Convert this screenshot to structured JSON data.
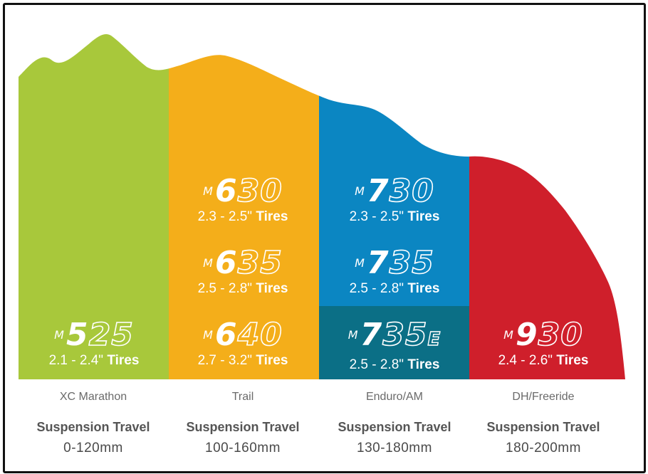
{
  "colors": {
    "xc": "#a8c83b",
    "trail": "#f4ae1a",
    "enduro": "#0b86c2",
    "enduro_e": "#0b6f86",
    "dh": "#cf1f2b"
  },
  "columns": [
    {
      "category": "XC Marathon",
      "travel_label": "Suspension Travel",
      "travel_range": "0-120mm",
      "products": [
        {
          "prefix": "M",
          "lead": "5",
          "rest": "25",
          "suffix": "",
          "size": "2.1 - 2.4\"",
          "tires": "Tires"
        }
      ]
    },
    {
      "category": "Trail",
      "travel_label": "Suspension Travel",
      "travel_range": "100-160mm",
      "products": [
        {
          "prefix": "M",
          "lead": "6",
          "rest": "30",
          "suffix": "",
          "size": "2.3 - 2.5\"",
          "tires": "Tires"
        },
        {
          "prefix": "M",
          "lead": "6",
          "rest": "35",
          "suffix": "",
          "size": "2.5 - 2.8\"",
          "tires": "Tires"
        },
        {
          "prefix": "M",
          "lead": "6",
          "rest": "40",
          "suffix": "",
          "size": "2.7 - 3.2\"",
          "tires": "Tires"
        }
      ]
    },
    {
      "category": "Enduro/AM",
      "travel_label": "Suspension Travel",
      "travel_range": "130-180mm",
      "products": [
        {
          "prefix": "M",
          "lead": "7",
          "rest": "30",
          "suffix": "",
          "size": "2.3 - 2.5\"",
          "tires": "Tires"
        },
        {
          "prefix": "M",
          "lead": "7",
          "rest": "35",
          "suffix": "",
          "size": "2.5 - 2.8\"",
          "tires": "Tires"
        },
        {
          "prefix": "M",
          "lead": "7",
          "rest": "35",
          "suffix": "E",
          "size": "2.5 - 2.8\"",
          "tires": "Tires"
        }
      ]
    },
    {
      "category": "DH/Freeride",
      "travel_label": "Suspension Travel",
      "travel_range": "180-200mm",
      "products": [
        {
          "prefix": "M",
          "lead": "9",
          "rest": "30",
          "suffix": "",
          "size": "2.4 - 2.6\"",
          "tires": "Tires"
        }
      ]
    }
  ]
}
